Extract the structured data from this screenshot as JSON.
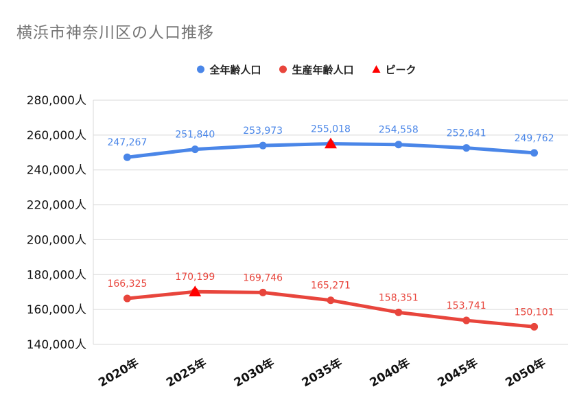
{
  "chart_data": {
    "type": "line",
    "title": "横浜市神奈川区の人口推移",
    "categories": [
      "2020年",
      "2025年",
      "2030年",
      "2035年",
      "2040年",
      "2045年",
      "2050年"
    ],
    "ylim": [
      140000,
      280000
    ],
    "yticks": [
      140000,
      160000,
      180000,
      200000,
      220000,
      240000,
      260000,
      280000
    ],
    "ytick_labels": [
      "140,000人",
      "160,000人",
      "180,000人",
      "200,000人",
      "220,000人",
      "240,000人",
      "260,000人",
      "280,000人"
    ],
    "grid": true,
    "legend_position": "top",
    "series": [
      {
        "name": "全年齢人口",
        "color": "#4a86e8",
        "values": [
          247267,
          251840,
          253973,
          255018,
          254558,
          252641,
          249762
        ],
        "labels": [
          "247,267",
          "251,840",
          "253,973",
          "255,018",
          "254,558",
          "252,641",
          "249,762"
        ]
      },
      {
        "name": "生産年齢人口",
        "color": "#e8453c",
        "values": [
          166325,
          170199,
          169746,
          165271,
          158351,
          153741,
          150101
        ],
        "labels": [
          "166,325",
          "170,199",
          "169,746",
          "165,271",
          "158,351",
          "153,741",
          "150,101"
        ]
      }
    ],
    "peak_marker": {
      "name": "ピーク",
      "color": "#ff0000",
      "points": [
        {
          "series": "全年齢人口",
          "category": "2035年",
          "value": 255018
        },
        {
          "series": "生産年齢人口",
          "category": "2025年",
          "value": 170199
        }
      ]
    }
  }
}
